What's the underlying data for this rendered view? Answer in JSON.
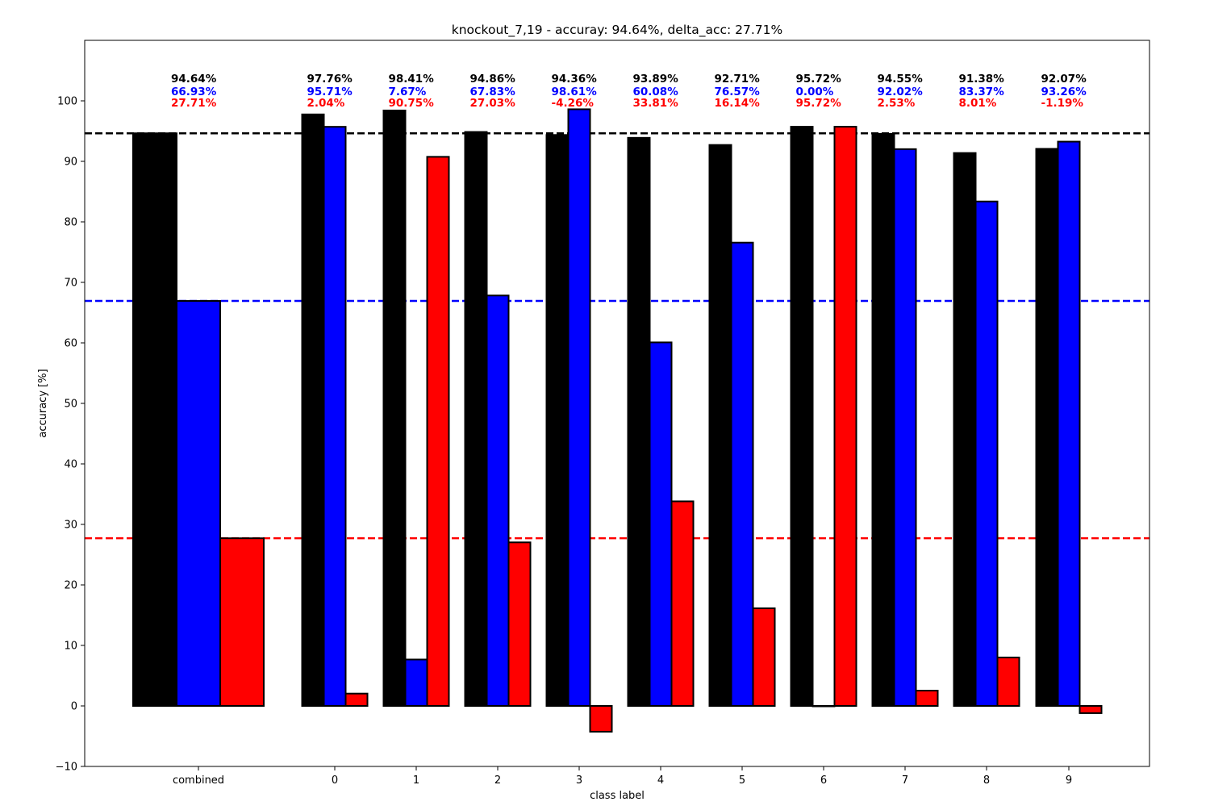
{
  "chart_data": {
    "type": "bar",
    "title": "knockout_7,19 - accuray: 94.64%, delta_acc: 27.71%",
    "xlabel": "class label",
    "ylabel": "accuracy [%]",
    "ylim": [
      -10,
      110
    ],
    "yticks": [
      -10,
      0,
      10,
      20,
      30,
      40,
      50,
      60,
      70,
      80,
      90,
      100
    ],
    "grid": false,
    "categories": [
      "combined",
      "0",
      "1",
      "2",
      "3",
      "4",
      "5",
      "6",
      "7",
      "8",
      "9"
    ],
    "series": [
      {
        "color": "#000000",
        "values": [
          94.64,
          97.76,
          98.41,
          94.86,
          94.36,
          93.89,
          92.71,
          95.72,
          94.55,
          91.38,
          92.07
        ]
      },
      {
        "color": "#0000ff",
        "values": [
          66.93,
          95.71,
          7.67,
          67.83,
          98.61,
          60.08,
          76.57,
          0.0,
          92.02,
          83.37,
          93.26
        ]
      },
      {
        "color": "#ff0000",
        "values": [
          27.71,
          2.04,
          90.75,
          27.03,
          -4.26,
          33.81,
          16.14,
          95.72,
          2.53,
          8.01,
          -1.19
        ]
      }
    ],
    "data_labels": [
      [
        "94.64%",
        "97.76%",
        "98.41%",
        "94.86%",
        "94.36%",
        "93.89%",
        "92.71%",
        "95.72%",
        "94.55%",
        "91.38%",
        "92.07%"
      ],
      [
        "66.93%",
        "95.71%",
        "7.67%",
        "67.83%",
        "98.61%",
        "60.08%",
        "76.57%",
        "0.00%",
        "92.02%",
        "83.37%",
        "93.26%"
      ],
      [
        "27.71%",
        "2.04%",
        "90.75%",
        "27.03%",
        "-4.26%",
        "33.81%",
        "16.14%",
        "95.72%",
        "2.53%",
        "8.01%",
        "-1.19%"
      ]
    ],
    "reference_lines": [
      {
        "value": 94.64,
        "color": "#000000",
        "style": "dashed"
      },
      {
        "value": 66.93,
        "color": "#0000ff",
        "style": "dashed"
      },
      {
        "value": 27.71,
        "color": "#ff0000",
        "style": "dashed"
      }
    ]
  }
}
